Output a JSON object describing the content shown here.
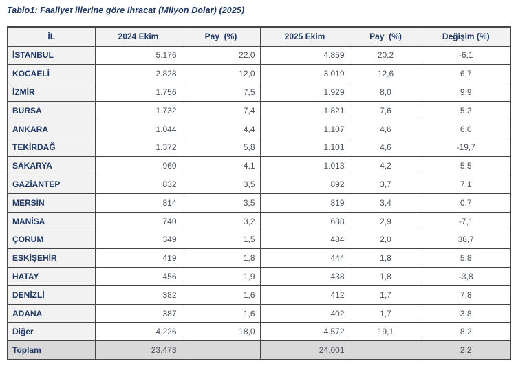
{
  "title": "Tablo1: Faaliyet illerine göre İhracat (Milyon Dolar) (2025)",
  "colors": {
    "navy": "#1f3864",
    "num": "#49505a",
    "header-bg": "#f2f2f2",
    "label-bg": "#f2f2f2",
    "total-bg": "#d9d9d9",
    "border": "#454545",
    "page-bg": "#ffffff"
  },
  "table": {
    "columns": [
      "İL",
      "2024 Ekim",
      "Pay  (%)",
      "2025 Ekim",
      "Pay  (%)",
      "Değişim (%)"
    ],
    "rows": [
      [
        "İSTANBUL",
        "5.176",
        "22,0",
        "4.859",
        "20,2",
        "-6,1"
      ],
      [
        "KOCAELİ",
        "2.828",
        "12,0",
        "3.019",
        "12,6",
        "6,7"
      ],
      [
        "İZMİR",
        "1.756",
        "7,5",
        "1.929",
        "8,0",
        "9,9"
      ],
      [
        "BURSA",
        "1.732",
        "7,4",
        "1.821",
        "7,6",
        "5,2"
      ],
      [
        "ANKARA",
        "1.044",
        "4,4",
        "1.107",
        "4,6",
        "6,0"
      ],
      [
        "TEKİRDAĞ",
        "1.372",
        "5,8",
        "1.101",
        "4,6",
        "-19,7"
      ],
      [
        "SAKARYA",
        "960",
        "4,1",
        "1.013",
        "4,2",
        "5,5"
      ],
      [
        "GAZİANTEP",
        "832",
        "3,5",
        "892",
        "3,7",
        "7,1"
      ],
      [
        "MERSİN",
        "814",
        "3,5",
        "819",
        "3,4",
        "0,7"
      ],
      [
        "MANİSA",
        "740",
        "3,2",
        "688",
        "2,9",
        "-7,1"
      ],
      [
        "ÇORUM",
        "349",
        "1,5",
        "484",
        "2,0",
        "38,7"
      ],
      [
        "ESKİŞEHİR",
        "419",
        "1,8",
        "444",
        "1,8",
        "5,8"
      ],
      [
        "HATAY",
        "456",
        "1,9",
        "438",
        "1,8",
        "-3,8"
      ],
      [
        "DENİZLİ",
        "382",
        "1,6",
        "412",
        "1,7",
        "7,8"
      ],
      [
        "ADANA",
        "387",
        "1,6",
        "402",
        "1,7",
        "3,8"
      ],
      [
        "Diğer",
        "4.226",
        "18,0",
        "4.572",
        "19,1",
        "8,2"
      ]
    ],
    "total_row": [
      "Toplam",
      "23.473",
      "",
      "24.001",
      "",
      "2,2"
    ]
  }
}
